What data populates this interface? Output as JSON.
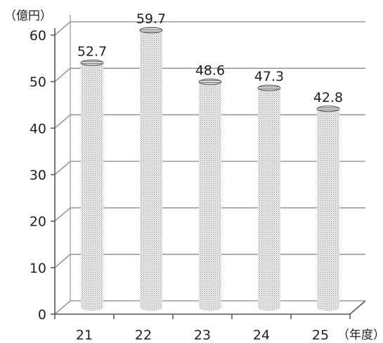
{
  "chart_data": {
    "type": "bar",
    "style": "3d-cylinder",
    "categories": [
      "21",
      "22",
      "23",
      "24",
      "25"
    ],
    "values": [
      52.7,
      59.7,
      48.6,
      47.3,
      42.8
    ],
    "data_labels": [
      "52.7",
      "59.7",
      "48.6",
      "47.3",
      "42.8"
    ],
    "y_ticks": [
      0,
      10,
      20,
      30,
      40,
      50,
      60
    ],
    "ylim": [
      0,
      60
    ],
    "grid": true,
    "legend": "none",
    "y_unit": "（億円）",
    "x_unit": "（年度）",
    "colors": {
      "bar_fill": "#e6e6e6",
      "bar_dot": "#8a8a8a",
      "grid": "#9a9a9a",
      "axis": "#555555"
    }
  }
}
